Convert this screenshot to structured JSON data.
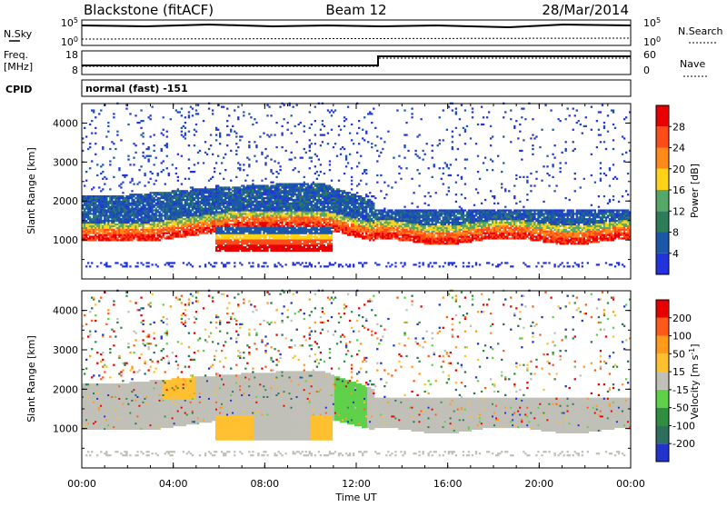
{
  "header": {
    "station": "Blackstone (fitACF)",
    "beam": "Beam 12",
    "date": "28/Mar/2014"
  },
  "noise_panel": {
    "left_label": "N.Sky",
    "right_label": "N.Search",
    "left_ticks": [
      "10^5",
      "10^0"
    ],
    "right_ticks": [
      "10^5",
      "10^0"
    ]
  },
  "freq_panel": {
    "left_label_line1": "Freq.",
    "left_label_line2": "[MHz]",
    "right_label": "Nave",
    "left_ticks": [
      "18",
      "8"
    ],
    "right_ticks": [
      "60",
      "0"
    ]
  },
  "cpid_panel": {
    "label": "CPID",
    "text": "normal (fast) -151"
  },
  "x_axis": {
    "title": "Time UT",
    "ticks": [
      "00:00",
      "04:00",
      "08:00",
      "12:00",
      "16:00",
      "20:00",
      "00:00"
    ]
  },
  "chart_data": [
    {
      "type": "heatmap",
      "title": "",
      "xlabel": "Time UT",
      "ylabel": "Slant Range [km]",
      "x_range_hours": [
        0,
        24
      ],
      "ylim": [
        0,
        4500
      ],
      "y_ticks": [
        "1000",
        "2000",
        "3000",
        "4000"
      ],
      "colorbar": {
        "label": "Power [dB]",
        "ticks": [
          "28",
          "24",
          "20",
          "16",
          "12",
          "8",
          "4"
        ],
        "colors": [
          "#2233dd",
          "#1a57a8",
          "#2e7d5a",
          "#55a868",
          "#ffd21a",
          "#ff8a1a",
          "#ff4a1a",
          "#e80000"
        ]
      },
      "features": [
        {
          "name": "main band",
          "hours": [
            0,
            24
          ],
          "range_km": [
            950,
            1650
          ]
        },
        {
          "name": "upper band",
          "hours": [
            0,
            13
          ],
          "range_km": [
            1500,
            2450
          ]
        },
        {
          "name": "enhancement",
          "hours": [
            5.8,
            11
          ],
          "range_km": [
            700,
            1300
          ]
        }
      ]
    },
    {
      "type": "heatmap",
      "title": "",
      "xlabel": "Time UT",
      "ylabel": "Slant Range [km]",
      "x_range_hours": [
        0,
        24
      ],
      "ylim": [
        0,
        4500
      ],
      "y_ticks": [
        "1000",
        "2000",
        "3000",
        "4000"
      ],
      "colorbar": {
        "label": "Velocity [m s^-1]",
        "ticks": [
          "200",
          "100",
          "50",
          "15",
          "-15",
          "-50",
          "-100",
          "-200"
        ],
        "colors": [
          "#2233cc",
          "#2b6f5c",
          "#2f8f3f",
          "#5fd04a",
          "#c0c0b8",
          "#ffc030",
          "#ff9a1a",
          "#ff5a1a",
          "#e80000"
        ]
      },
      "features": [
        {
          "name": "ground scatter",
          "hours": [
            0,
            24
          ],
          "range_km": [
            700,
            2450
          ]
        },
        {
          "name": "negative velocities",
          "hours": [
            3.5,
            11
          ],
          "range_km": [
            700,
            2300
          ]
        },
        {
          "name": "positive velocities",
          "hours": [
            11,
            12.5
          ],
          "range_km": [
            1000,
            2700
          ]
        }
      ]
    }
  ]
}
